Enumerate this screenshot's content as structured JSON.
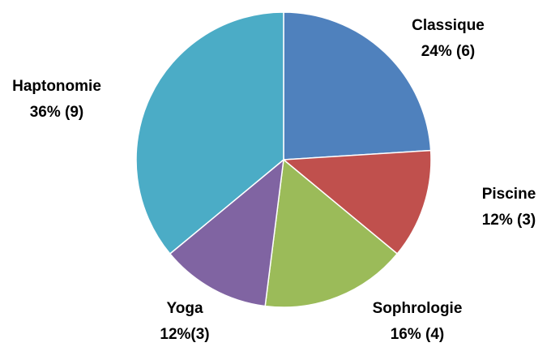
{
  "chart_data": {
    "type": "pie",
    "categories": [
      "Classique",
      "Piscine",
      "Sophrologie",
      "Yoga",
      "Haptonomie"
    ],
    "values": [
      24,
      12,
      16,
      12,
      36
    ],
    "value_labels": [
      "24% (6)",
      "12% (3)",
      "16% (4)",
      "12%(3)",
      "36% (9)"
    ],
    "colors": [
      "#4f81bd",
      "#c0504d",
      "#9bbb59",
      "#8064a2",
      "#4bacc6"
    ]
  }
}
